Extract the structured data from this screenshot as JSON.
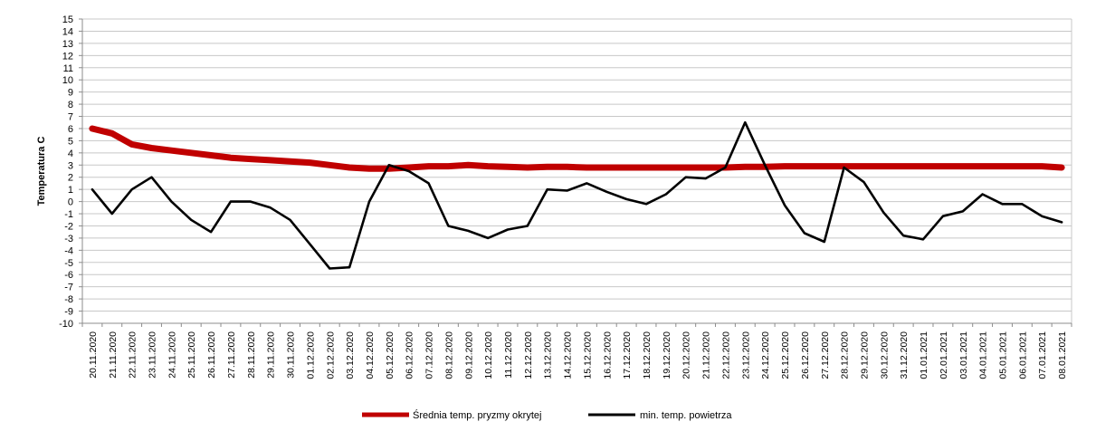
{
  "chart_data": {
    "type": "line",
    "ylabel": "Temperatura C",
    "xlabel": "",
    "ylim": [
      -10,
      15
    ],
    "yticks": [
      15,
      14,
      13,
      12,
      11,
      10,
      9,
      8,
      7,
      6,
      5,
      4,
      3,
      2,
      1,
      0,
      -1,
      -2,
      -3,
      -4,
      -5,
      -6,
      -7,
      -8,
      -9,
      -10
    ],
    "grid": true,
    "legend_position": "bottom",
    "categories": [
      "20.11.2020",
      "21.11.2020",
      "22.11.2020",
      "23.11.2020",
      "24.11.2020",
      "25.11.2020",
      "26.11.2020",
      "27.11.2020",
      "28.11.2020",
      "29.11.2020",
      "30.11.2020",
      "01.12.2020",
      "02.12.2020",
      "03.12.2020",
      "04.12.2020",
      "05.12.2020",
      "06.12.2020",
      "07.12.2020",
      "08.12.2020",
      "09.12.2020",
      "10.12.2020",
      "11.12.2020",
      "12.12.2020",
      "13.12.2020",
      "14.12.2020",
      "15.12.2020",
      "16.12.2020",
      "17.12.2020",
      "18.12.2020",
      "19.12.2020",
      "20.12.2020",
      "21.12.2020",
      "22.12.2020",
      "23.12.2020",
      "24.12.2020",
      "25.12.2020",
      "26.12.2020",
      "27.12.2020",
      "28.12.2020",
      "29.12.2020",
      "30.12.2020",
      "31.12.2020",
      "01.01.2021",
      "02.01.2021",
      "03.01.2021",
      "04.01.2021",
      "05.01.2021",
      "06.01.2021",
      "07.01.2021",
      "08.01.2021"
    ],
    "series": [
      {
        "name": "Średnia temp. pryzmy okrytej",
        "color": "#c00000",
        "values": [
          6.0,
          5.6,
          4.7,
          4.4,
          4.2,
          4.0,
          3.8,
          3.6,
          3.5,
          3.4,
          3.3,
          3.2,
          3.0,
          2.8,
          2.7,
          2.7,
          2.8,
          2.9,
          2.9,
          3.0,
          2.9,
          2.85,
          2.8,
          2.85,
          2.85,
          2.8,
          2.8,
          2.8,
          2.8,
          2.8,
          2.8,
          2.8,
          2.8,
          2.85,
          2.85,
          2.9,
          2.9,
          2.9,
          2.9,
          2.9,
          2.9,
          2.9,
          2.9,
          2.9,
          2.9,
          2.9,
          2.9,
          2.9,
          2.9,
          2.8
        ]
      },
      {
        "name": "min. temp. powietrza",
        "color": "#000000",
        "values": [
          1.0,
          -1.0,
          1.0,
          2.0,
          0.0,
          -1.5,
          -2.5,
          0.0,
          0.0,
          -0.5,
          -1.5,
          -3.5,
          -5.5,
          -5.4,
          0.0,
          3.0,
          2.5,
          1.5,
          -2.0,
          -2.4,
          -3.0,
          -2.3,
          -2.0,
          1.0,
          0.9,
          1.5,
          0.8,
          0.2,
          -0.2,
          0.6,
          2.0,
          1.9,
          2.8,
          6.5,
          3.0,
          -0.3,
          -2.6,
          -3.3,
          2.8,
          1.6,
          -0.9,
          -2.8,
          -3.1,
          -1.2,
          -0.8,
          0.6,
          -0.2,
          -0.2,
          -1.2,
          -1.7
        ]
      }
    ]
  }
}
